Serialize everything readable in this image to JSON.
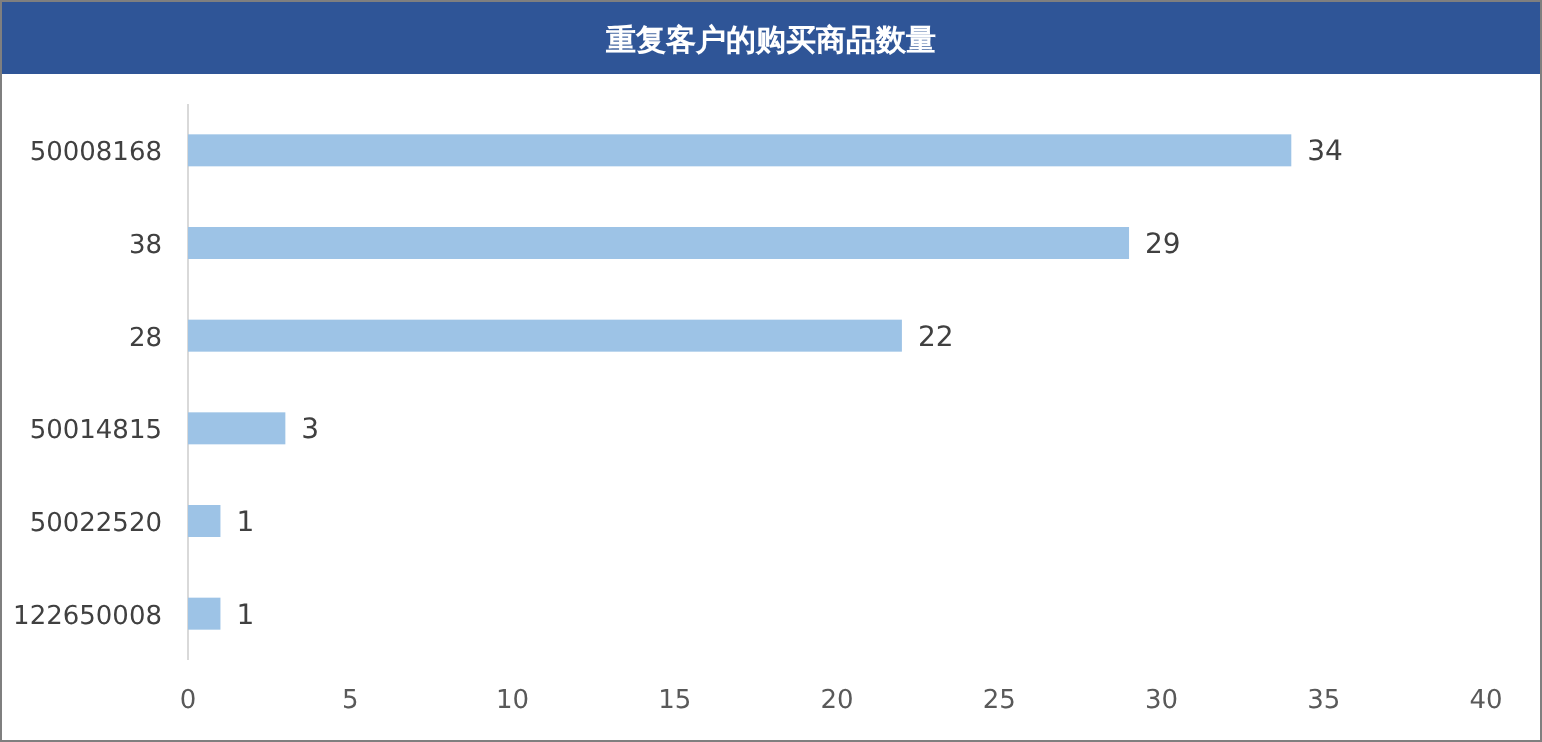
{
  "chart_data": {
    "type": "bar",
    "orientation": "horizontal",
    "title": "重复客户的购买商品数量",
    "categories": [
      "50008168",
      "38",
      "28",
      "50014815",
      "50022520",
      "122650008"
    ],
    "values": [
      34,
      29,
      22,
      3,
      1,
      1
    ],
    "color": "#9dc3e6",
    "xlim": [
      0,
      40
    ],
    "xticks": [
      0,
      5,
      10,
      15,
      20,
      25,
      30,
      35,
      40
    ],
    "data_labels": true,
    "grid": false
  }
}
